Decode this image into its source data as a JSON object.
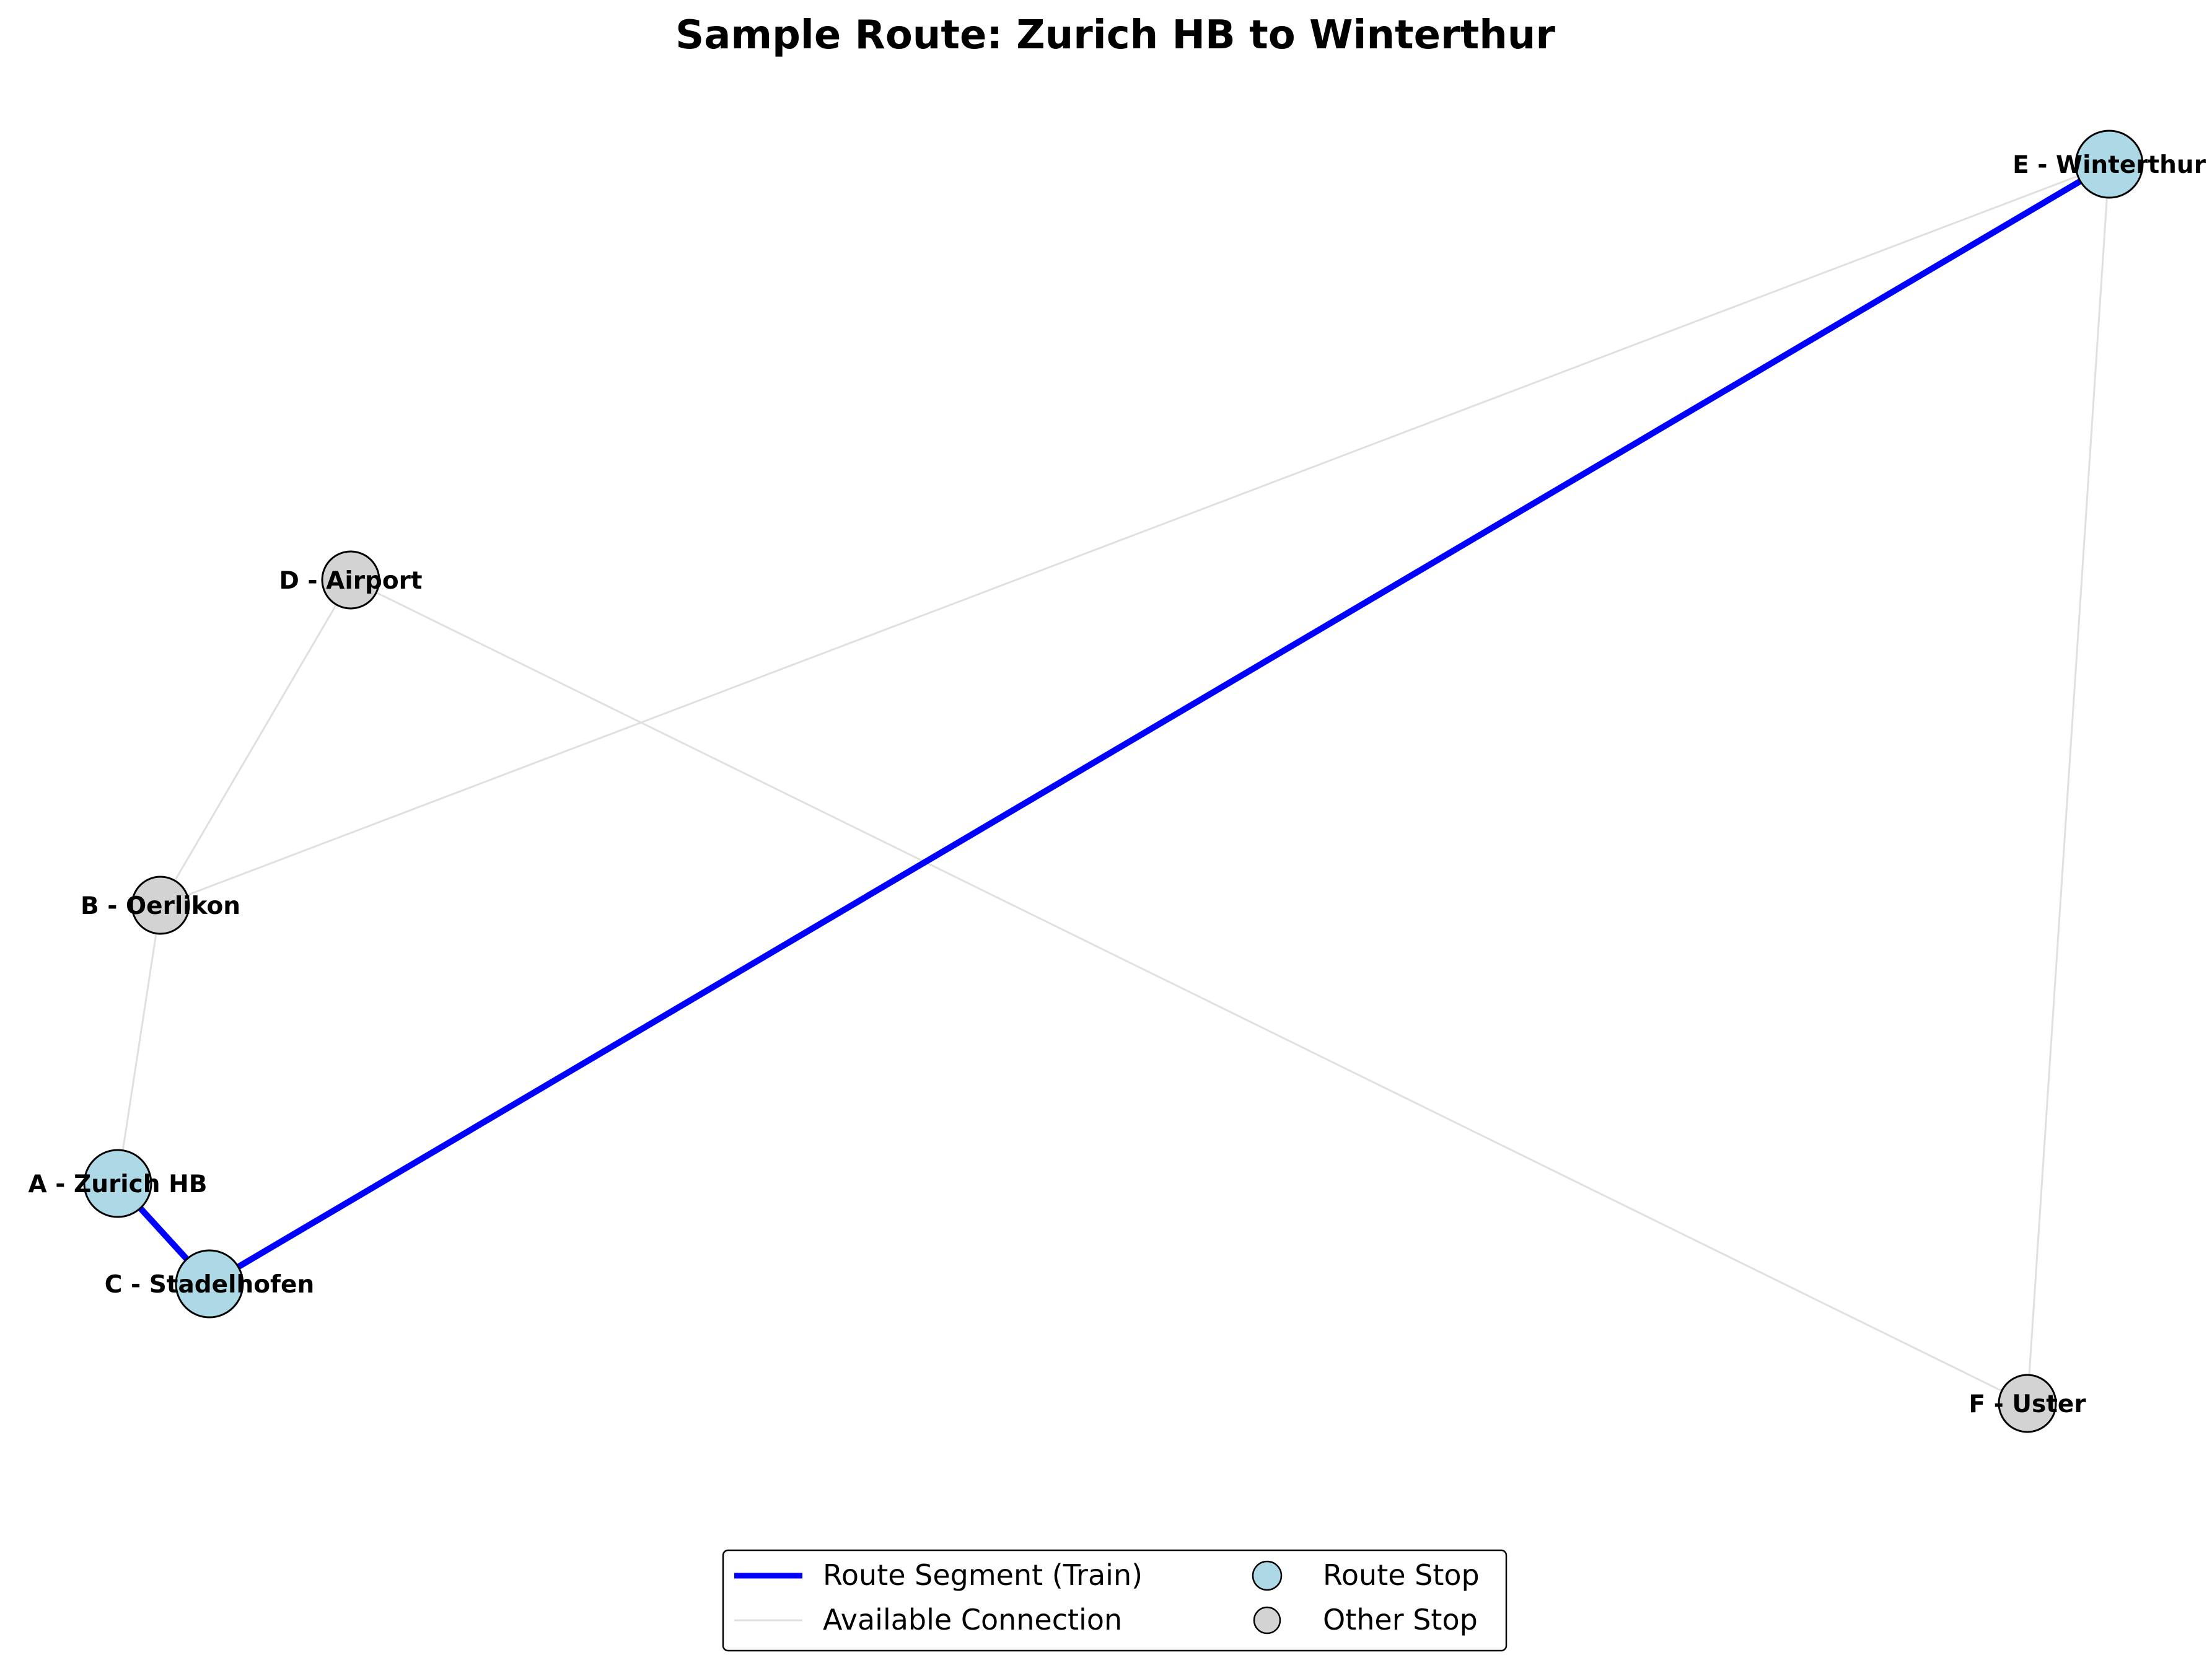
{
  "title": "Sample Route: Zurich HB to Winterthur",
  "colors": {
    "route_segment": "#0000ff",
    "available_connection": "#e0e0e0",
    "route_stop": "#add8e6",
    "other_stop": "#d3d3d3",
    "node_border": "#000000"
  },
  "nodes": [
    {
      "id": "A",
      "label": "A - Zurich HB",
      "kind": "route"
    },
    {
      "id": "B",
      "label": "B - Oerlikon",
      "kind": "other"
    },
    {
      "id": "C",
      "label": "C - Stadelhofen",
      "kind": "route"
    },
    {
      "id": "D",
      "label": "D - Airport",
      "kind": "other"
    },
    {
      "id": "E",
      "label": "E - Winterthur",
      "kind": "route"
    },
    {
      "id": "F",
      "label": "F - Uster",
      "kind": "other"
    }
  ],
  "edges": [
    {
      "from": "A",
      "to": "B",
      "kind": "connection"
    },
    {
      "from": "B",
      "to": "D",
      "kind": "connection"
    },
    {
      "from": "B",
      "to": "E",
      "kind": "connection"
    },
    {
      "from": "D",
      "to": "F",
      "kind": "connection"
    },
    {
      "from": "E",
      "to": "F",
      "kind": "connection"
    },
    {
      "from": "A",
      "to": "C",
      "kind": "route"
    },
    {
      "from": "C",
      "to": "E",
      "kind": "route"
    }
  ],
  "legend": {
    "route_segment": "Route Segment (Train)",
    "available_connection": "Available Connection",
    "route_stop": "Route Stop",
    "other_stop": "Other Stop"
  }
}
